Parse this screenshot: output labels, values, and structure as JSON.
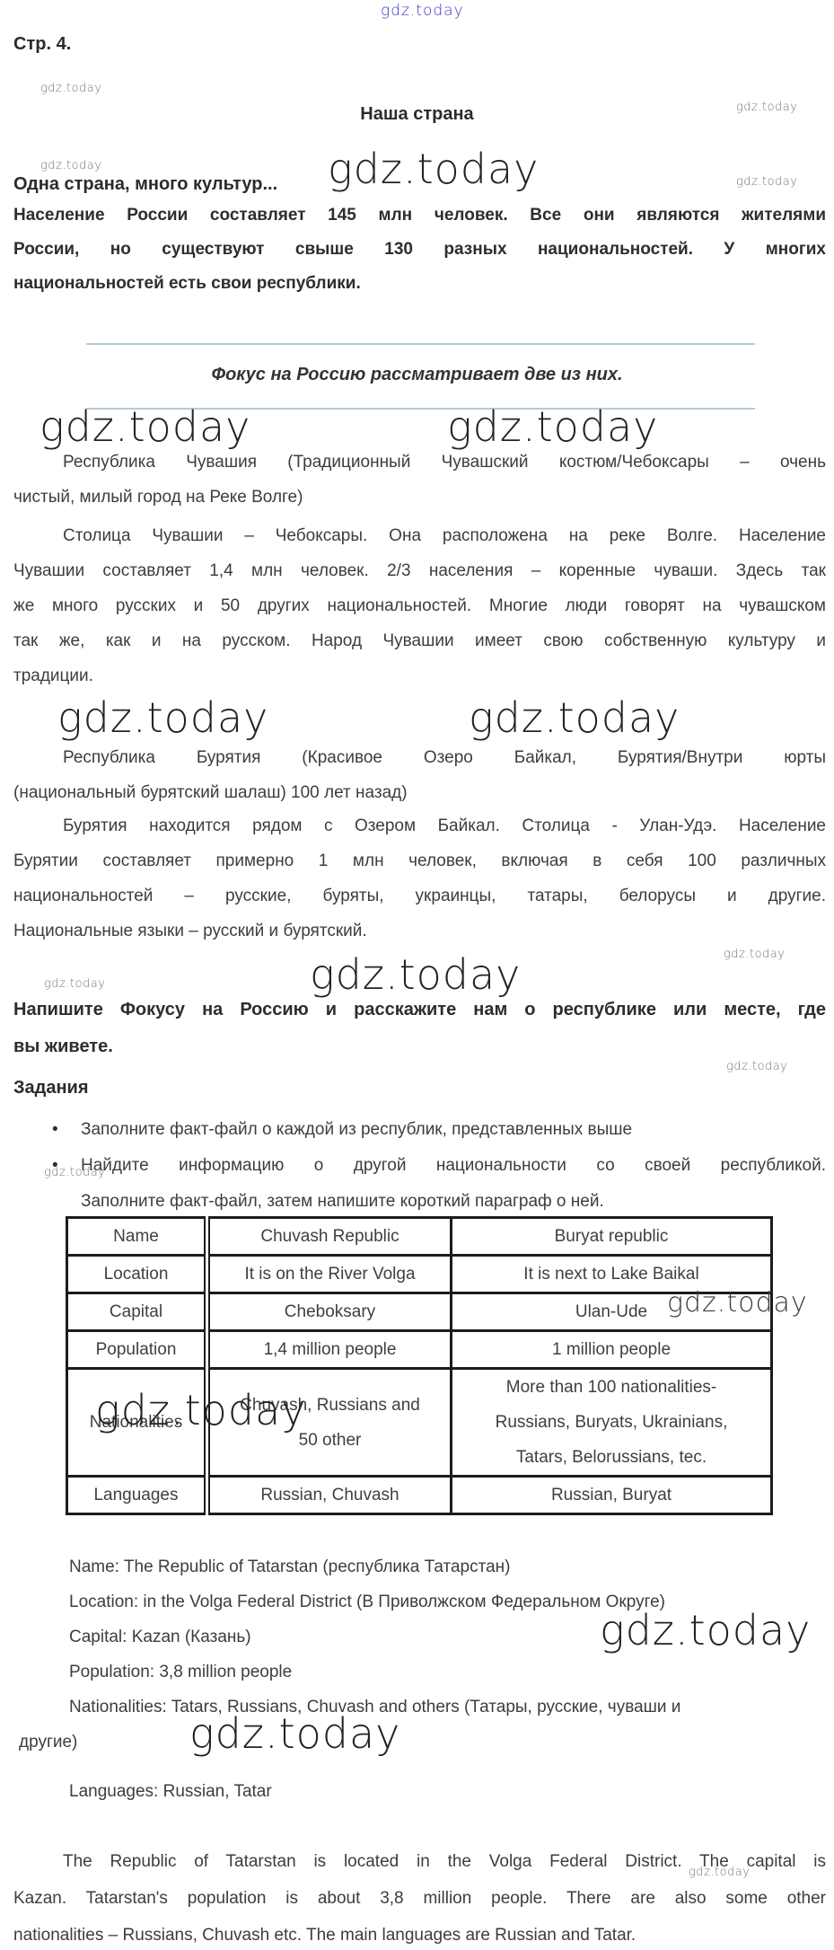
{
  "brand": {
    "name": "gdz.today"
  },
  "colors": {
    "accent_blue": "#3733c9",
    "watermark_gray": "#757575",
    "rule_blue": "#b7cad8",
    "text": "#3d3d3d",
    "table_border": "#1c1c1c"
  },
  "header": {
    "page_label": "Стр. 4.",
    "title": "Наша страна",
    "subtitle": "Одна страна, много культур..."
  },
  "intro": {
    "lines": [
      "Население России составляет 145 млн человек. Все они являются жителями",
      "России, но существуют свыше 130 разных национальностей. У многих",
      "национальностей есть свои республики."
    ]
  },
  "divider": {
    "focus_note": "Фокус на Россию рассматривает две из них."
  },
  "chuvashia": {
    "p1": {
      "lines": [
        "Республика Чувашия (Традиционный Чувашский костюм/Чебоксары – очень",
        "чистый, милый город на Реке Волге)"
      ]
    },
    "p2": {
      "lines": [
        "Столица Чувашии – Чебоксары. Она расположена на реке Волге. Население",
        "Чувашии составляет 1,4 млн человек. 2/3 населения – коренные чуваши. Здесь так",
        "же много русских и 50 других национальностей. Многие люди говорят на чувашском",
        "так же, как и на русском. Народ Чувашии имеет свою собственную культуру и",
        "традиции."
      ]
    }
  },
  "buryatia": {
    "p1": {
      "lines": [
        "Республика Бурятия (Красивое Озеро Байкал, Бурятия/Внутри юрты",
        "(национальный бурятский шалаш) 100 лет назад)"
      ]
    },
    "p2": {
      "lines": [
        "Бурятия находится рядом с Озером Байкал. Столица - Улан-Удэ. Население",
        "Бурятии составляет примерно 1 млн человек, включая в себя 100 различных",
        "национальностей – русские, буряты, украинцы, татары, белорусы и другие.",
        "Национальные языки – русский и бурятский."
      ]
    }
  },
  "write_prompt": {
    "lines": [
      "Напишите Фокусу на Россию и расскажите нам о республике или месте, где",
      "вы живете."
    ]
  },
  "tasks": {
    "heading": "Задания",
    "bullet_glyph": "•",
    "bullet1": {
      "lines": [
        "Заполните факт-файл о каждой из республик, представленных выше"
      ]
    },
    "bullet2": {
      "lines": [
        "Найдите информацию о другой национальности со своей республикой.",
        "Заполните факт-файл, затем напишите короткий параграф о ней."
      ]
    }
  },
  "fact_table": {
    "rows": [
      {
        "cells": [
          {
            "lines": [
              "Name"
            ]
          },
          {
            "lines": [
              "Chuvash Republic"
            ]
          },
          {
            "lines": [
              "Buryat republic"
            ]
          }
        ]
      },
      {
        "cells": [
          {
            "lines": [
              "Location"
            ]
          },
          {
            "lines": [
              "It is on the River Volga"
            ]
          },
          {
            "lines": [
              "It is next to Lake Baikal"
            ]
          }
        ]
      },
      {
        "cells": [
          {
            "lines": [
              "Capital"
            ]
          },
          {
            "lines": [
              "Cheboksary"
            ]
          },
          {
            "lines": [
              "Ulan-Ude"
            ]
          }
        ]
      },
      {
        "cells": [
          {
            "lines": [
              "Population"
            ]
          },
          {
            "lines": [
              "1,4 million people"
            ]
          },
          {
            "lines": [
              "1 million people"
            ]
          }
        ]
      },
      {
        "cells": [
          {
            "lines": [
              "Nationalities"
            ]
          },
          {
            "lines": [
              "Chuvash, Russians and",
              "50 other"
            ]
          },
          {
            "lines": [
              "More than 100 nationalities-",
              "Russians, Buryats, Ukrainians,",
              "Tatars, Belorussians, tec."
            ]
          }
        ]
      },
      {
        "cells": [
          {
            "lines": [
              "Languages"
            ]
          },
          {
            "lines": [
              "Russian, Chuvash"
            ]
          },
          {
            "lines": [
              "Russian, Buryat"
            ]
          }
        ]
      }
    ]
  },
  "tatarstan": {
    "items": [
      {
        "lines": [
          "Name: The Republic of Tatarstan (республика Татарстан)"
        ]
      },
      {
        "lines": [
          "Location: in the Volga Federal District (В Приволжском Федеральном Округе)"
        ]
      },
      {
        "lines": [
          "Capital: Kazan (Казань)"
        ]
      },
      {
        "lines": [
          "Population: 3,8 million people"
        ]
      },
      {
        "lines": [
          "Nationalities: Tatars, Russians, Chuvash and others (Татары, русские, чуваши и",
          "другие)"
        ]
      },
      {
        "lines": [
          "Languages: Russian, Tatar"
        ]
      }
    ]
  },
  "summary": {
    "lines": [
      "The Republic of Tatarstan is located in the Volga Federal District. The capital is",
      "Kazan. Tatarstan's population is about 3,8 million people. There are also some other",
      "nationalities – Russians, Chuvash etc. The main languages are Russian and Tatar."
    ]
  }
}
